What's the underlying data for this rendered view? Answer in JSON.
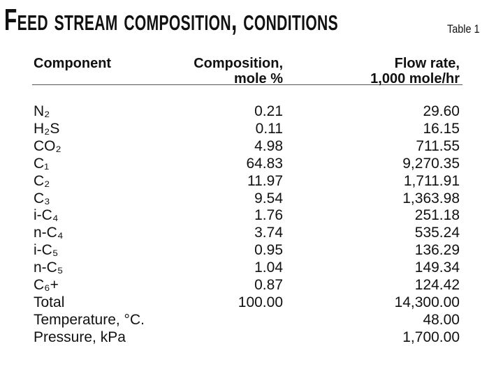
{
  "header": {
    "title": "Feed stream composition, conditions",
    "table_label": "Table 1"
  },
  "table": {
    "columns": [
      [
        "Component"
      ],
      [
        "Composition,",
        "mole %"
      ],
      [
        "Flow rate,",
        "1,000 mole/hr"
      ]
    ],
    "rows": [
      [
        "N₂",
        "0.21",
        "29.60"
      ],
      [
        "H₂S",
        "0.11",
        "16.15"
      ],
      [
        "CO₂",
        "4.98",
        "711.55"
      ],
      [
        "C₁",
        "64.83",
        "9,270.35"
      ],
      [
        "C₂",
        "11.97",
        "1,711.91"
      ],
      [
        "C₃",
        "9.54",
        "1,363.98"
      ],
      [
        "i-C₄",
        "1.76",
        "251.18"
      ],
      [
        "n-C₄",
        "3.74",
        "535.24"
      ],
      [
        "i-C₅",
        "0.95",
        "136.29"
      ],
      [
        "n-C₅",
        "1.04",
        "149.34"
      ],
      [
        "C₆+",
        "0.87",
        "124.42"
      ],
      [
        "Total",
        "100.00",
        "14,300.00"
      ],
      [
        "Temperature, °C.",
        null,
        "48.00"
      ],
      [
        "Pressure, kPa",
        null,
        "1,700.00"
      ]
    ]
  }
}
